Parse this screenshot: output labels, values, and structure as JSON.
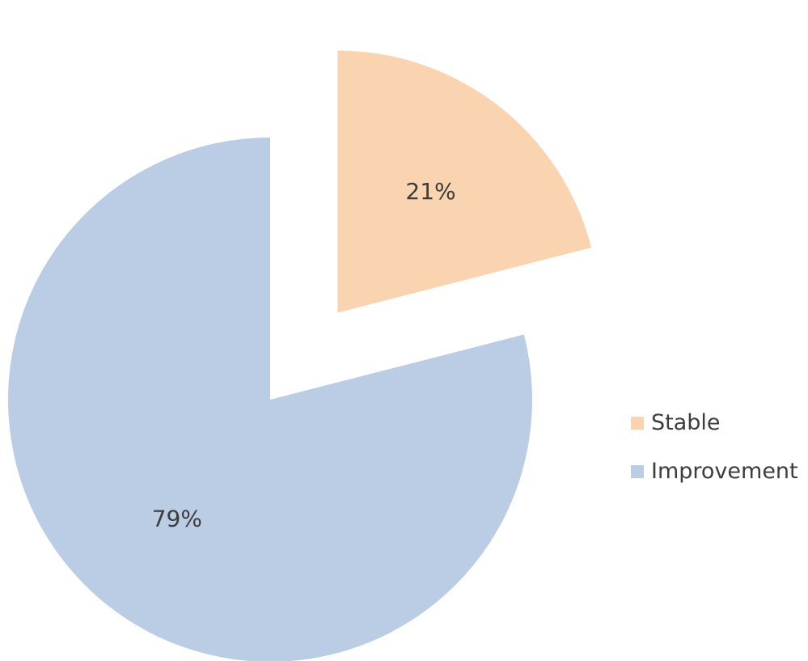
{
  "chart_data": {
    "type": "pie",
    "title": "",
    "series": [
      {
        "name": "Stable",
        "value": 21,
        "label": "21%",
        "color": "#FAD3B0"
      },
      {
        "name": "Improvement",
        "value": 79,
        "label": "79%",
        "color": "#BACDE5"
      }
    ],
    "start": "12 o'clock",
    "direction": "clockwise",
    "exploded": [
      "Stable"
    ],
    "legend": {
      "position": "right"
    }
  }
}
